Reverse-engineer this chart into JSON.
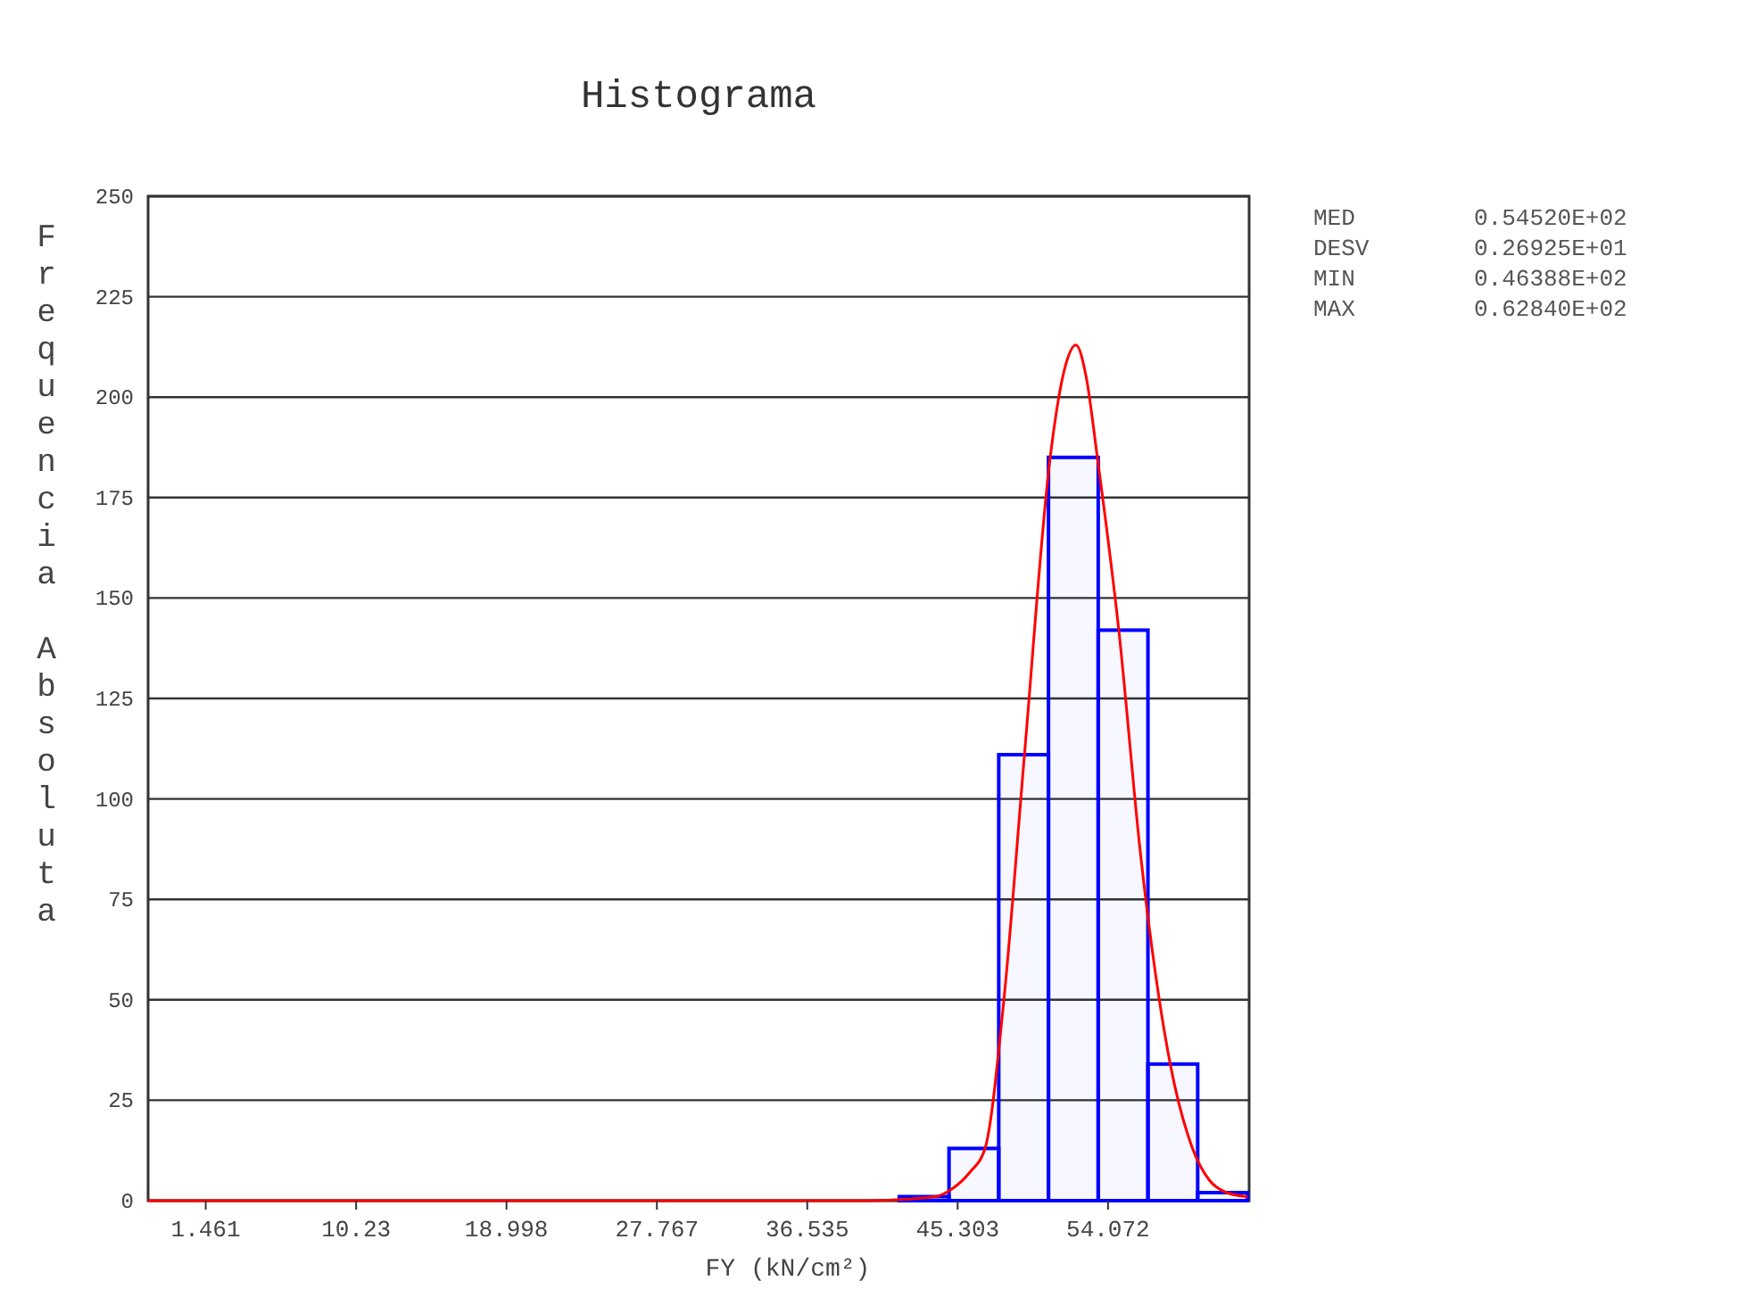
{
  "chart_data": {
    "type": "histogram",
    "title": "Histograma",
    "xlabel": "FY (kN/cm²)",
    "ylabel": "Frequencia Absoluta",
    "bins": [
      41.9,
      44.8,
      47.7,
      50.6,
      53.5,
      56.4,
      59.3,
      62.2
    ],
    "series": [
      {
        "color": "#0000ff",
        "values": [
          1,
          13,
          111,
          185,
          142,
          34,
          2
        ]
      },
      {
        "type": "line",
        "color": "#ff0000",
        "x": [
          -1.9,
          40,
          44,
          45,
          46,
          46.9,
          48,
          49.2,
          50.7,
          51.6,
          52.2,
          52.8,
          53.45,
          54.7,
          56,
          57.7,
          59,
          60,
          61,
          62.2
        ],
        "values": [
          0,
          0,
          1,
          3,
          7,
          13,
          50,
          111,
          185,
          208,
          213,
          205,
          185,
          142,
          85,
          34,
          13,
          5,
          2,
          1
        ]
      }
    ],
    "xlim": [
      -1.9,
      62.3
    ],
    "xticks": [
      1.461,
      10.23,
      18.998,
      27.767,
      36.535,
      45.303,
      54.072
    ],
    "ylim": [
      0,
      250
    ],
    "yticks": [
      0,
      25,
      50,
      75,
      100,
      125,
      150,
      175,
      200,
      225,
      250
    ],
    "grid": "y",
    "annotations": [
      "MED  0.54520E+02",
      "DESV  0.26925E+01",
      "MIN  0.46388E+02",
      "MAX  0.62840E+02"
    ]
  }
}
